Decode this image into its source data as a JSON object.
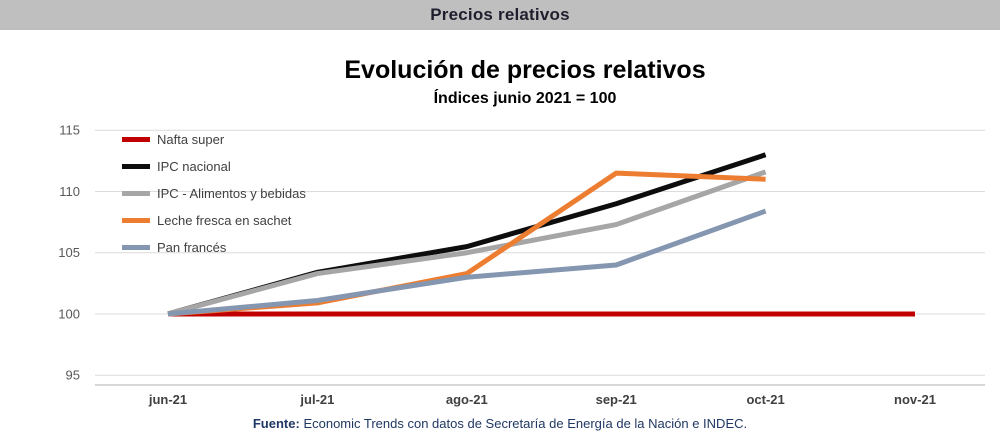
{
  "header": {
    "title": "Precios relativos"
  },
  "footer": {
    "source_label": "Fuente:",
    "source_text": "Economic Trends con datos de Secretaría de Energía de la Nación e INDEC."
  },
  "chart_data": {
    "type": "line",
    "title": "Evolución de precios relativos",
    "subtitle": "Índices junio 2021 = 100",
    "x_labels": [
      "jun-21",
      "jul-21",
      "ago-21",
      "sep-21",
      "oct-21",
      "nov-21"
    ],
    "y_ticks": [
      95,
      100,
      105,
      110,
      115
    ],
    "ylim": [
      94.2,
      116
    ],
    "grid": true,
    "legend_position": "top-left",
    "colors": {
      "grid": "#DCDCDC",
      "axis": "#BFBFBF",
      "y_tick_text": "#595959",
      "x_tick_text": "#404040"
    },
    "series": [
      {
        "name": "Nafta super",
        "color": "#C00000",
        "values": [
          100,
          100,
          100,
          100,
          100,
          100
        ]
      },
      {
        "name": "IPC nacional",
        "color": "#0D0D0D",
        "values": [
          100,
          103.4,
          105.5,
          109,
          113,
          null
        ]
      },
      {
        "name": "IPC - Alimentos y bebidas",
        "color": "#A6A6A6",
        "values": [
          100,
          103.3,
          105,
          107.3,
          111.6,
          null
        ]
      },
      {
        "name": "Leche fresca en sachet",
        "color": "#ED7D31",
        "values": [
          100,
          100.9,
          103.3,
          111.5,
          111,
          null
        ]
      },
      {
        "name": "Pan francés",
        "color": "#8496B0",
        "values": [
          100,
          101.1,
          103,
          104,
          108.4,
          null
        ]
      }
    ]
  }
}
